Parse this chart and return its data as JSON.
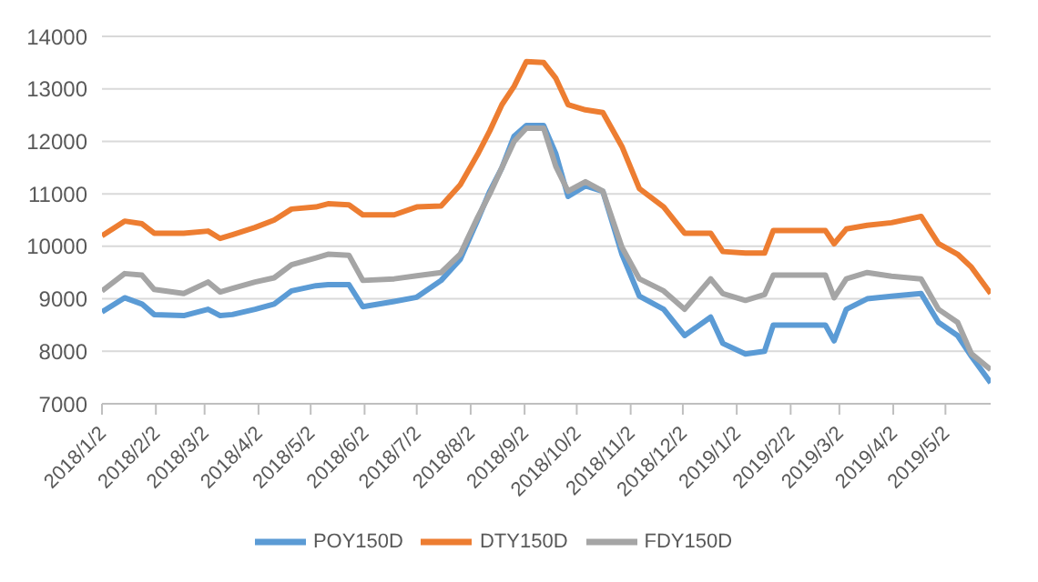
{
  "chart_data": {
    "type": "line",
    "x": [
      "2018-01-02",
      "2018-01-15",
      "2018-01-25",
      "2018-02-01",
      "2018-02-18",
      "2018-03-04",
      "2018-03-11",
      "2018-03-18",
      "2018-03-31",
      "2018-04-11",
      "2018-04-21",
      "2018-05-05",
      "2018-05-12",
      "2018-05-24",
      "2018-06-01",
      "2018-06-19",
      "2018-07-02",
      "2018-07-16",
      "2018-07-27",
      "2018-08-06",
      "2018-08-13",
      "2018-08-20",
      "2018-08-27",
      "2018-09-03",
      "2018-09-13",
      "2018-09-20",
      "2018-09-27",
      "2018-10-07",
      "2018-10-17",
      "2018-10-28",
      "2018-11-07",
      "2018-11-21",
      "2018-12-03",
      "2018-12-18",
      "2018-12-25",
      "2019-01-07",
      "2019-01-18",
      "2019-01-23",
      "2019-02-06",
      "2019-02-22",
      "2019-02-27",
      "2019-03-06",
      "2019-03-18",
      "2019-04-01",
      "2019-04-18",
      "2019-04-28",
      "2019-05-09",
      "2019-05-17",
      "2019-05-28"
    ],
    "series": [
      {
        "name": "POY150D",
        "color": "#5b9bd5",
        "values": [
          8750,
          9020,
          8900,
          8700,
          8680,
          8800,
          8680,
          8700,
          8800,
          8900,
          9150,
          9250,
          9270,
          9270,
          8850,
          8950,
          9030,
          9350,
          9750,
          10500,
          11050,
          11500,
          12100,
          12300,
          12300,
          11760,
          10950,
          11150,
          11050,
          9850,
          9050,
          8800,
          8300,
          8650,
          8150,
          7950,
          8000,
          8500,
          8500,
          8500,
          8200,
          8800,
          9000,
          9050,
          9100,
          8550,
          8300,
          7900,
          7400
        ]
      },
      {
        "name": "DTY150D",
        "color": "#ed7d31",
        "values": [
          10200,
          10480,
          10430,
          10250,
          10250,
          10290,
          10150,
          10220,
          10360,
          10500,
          10710,
          10750,
          10810,
          10790,
          10600,
          10600,
          10750,
          10770,
          11170,
          11750,
          12200,
          12700,
          13050,
          13520,
          13500,
          13200,
          12700,
          12600,
          12550,
          11900,
          11100,
          10750,
          10250,
          10250,
          9900,
          9870,
          9870,
          10300,
          10300,
          10300,
          10050,
          10330,
          10400,
          10450,
          10570,
          10050,
          9850,
          9600,
          9100
        ]
      },
      {
        "name": "FDY150D",
        "color": "#a5a5a5",
        "values": [
          9150,
          9480,
          9450,
          9180,
          9100,
          9320,
          9130,
          9200,
          9320,
          9400,
          9650,
          9780,
          9850,
          9830,
          9350,
          9380,
          9440,
          9500,
          9850,
          10550,
          11000,
          11500,
          12000,
          12250,
          12250,
          11520,
          11050,
          11230,
          11050,
          9980,
          9380,
          9150,
          8800,
          9380,
          9100,
          8970,
          9080,
          9450,
          9450,
          9450,
          9020,
          9380,
          9500,
          9430,
          9380,
          8800,
          8550,
          7950,
          7650
        ]
      }
    ],
    "xlim": [
      "2018-01-02",
      "2019-05-28"
    ],
    "xticks": [
      {
        "value": "2018-01-02",
        "label": "2018/1/2"
      },
      {
        "value": "2018-02-02",
        "label": "2018/2/2"
      },
      {
        "value": "2018-03-02",
        "label": "2018/3/2"
      },
      {
        "value": "2018-04-02",
        "label": "2018/4/2"
      },
      {
        "value": "2018-05-02",
        "label": "2018/5/2"
      },
      {
        "value": "2018-06-02",
        "label": "2018/6/2"
      },
      {
        "value": "2018-07-02",
        "label": "2018/7/2"
      },
      {
        "value": "2018-08-02",
        "label": "2018/8/2"
      },
      {
        "value": "2018-09-02",
        "label": "2018/9/2"
      },
      {
        "value": "2018-10-02",
        "label": "2018/10/2"
      },
      {
        "value": "2018-11-02",
        "label": "2018/11/2"
      },
      {
        "value": "2018-12-02",
        "label": "2018/12/2"
      },
      {
        "value": "2019-01-02",
        "label": "2019/1/2"
      },
      {
        "value": "2019-02-02",
        "label": "2019/2/2"
      },
      {
        "value": "2019-03-02",
        "label": "2019/3/2"
      },
      {
        "value": "2019-04-02",
        "label": "2019/4/2"
      },
      {
        "value": "2019-05-02",
        "label": "2019/5/2"
      }
    ],
    "ylim": [
      7000,
      14000
    ],
    "yticks": [
      7000,
      8000,
      9000,
      10000,
      11000,
      12000,
      13000,
      14000
    ],
    "grid": "y",
    "legend": "bottom",
    "marker": "none",
    "line_style": "solid"
  }
}
